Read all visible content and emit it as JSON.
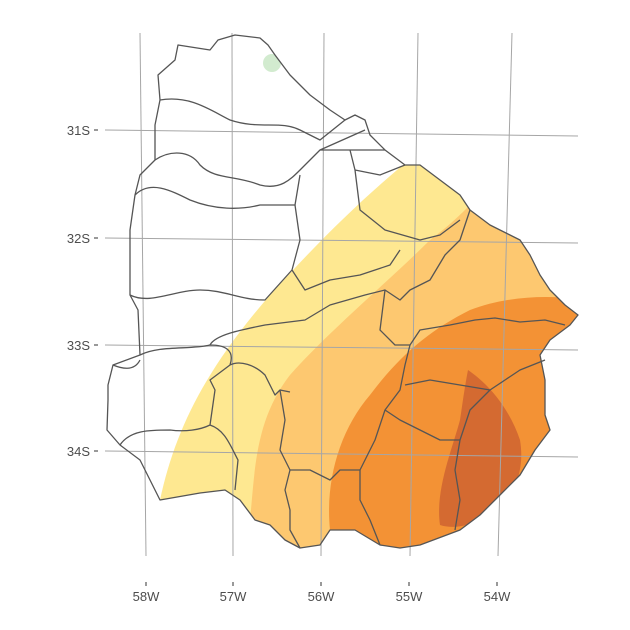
{
  "map": {
    "lat_labels": [
      "31S",
      "32S",
      "33S",
      "34S"
    ],
    "lon_labels": [
      "58W",
      "57W",
      "56W",
      "55W",
      "54W"
    ],
    "colors": {
      "band1": "#FEE891",
      "band2": "#FDC870",
      "band3": "#F39235",
      "band4": "#D46A31",
      "small_patch": "#D2EBCF",
      "border": "#555555",
      "grid": "#A6A6A6"
    }
  }
}
